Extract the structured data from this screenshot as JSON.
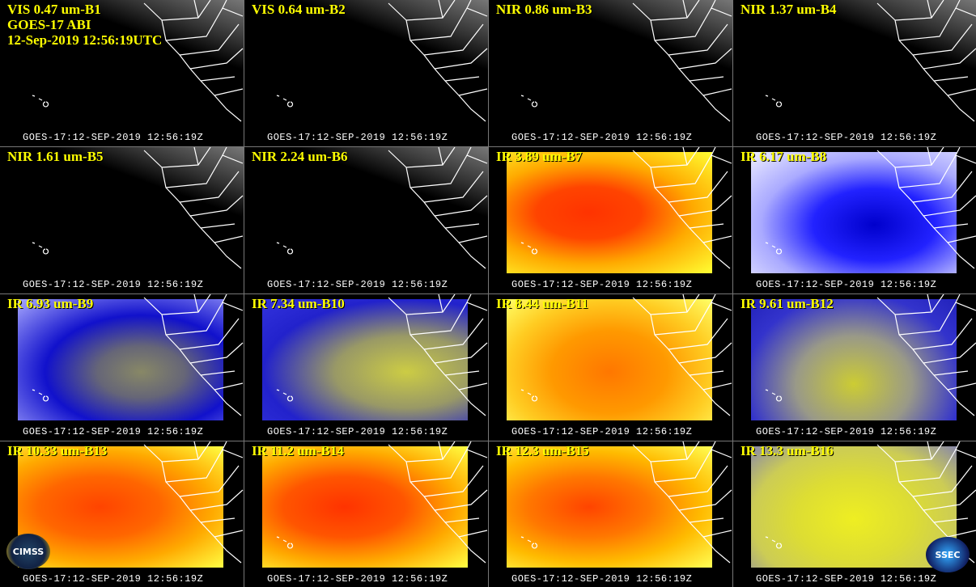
{
  "header": {
    "lines": [
      "GOES-17 ABI",
      "12-Sep-2019 12:56:19UTC"
    ]
  },
  "panels": [
    {
      "label": "VIS 0.47 um-B1",
      "footer": "GOES-17:12-SEP-2019 12:56:19Z"
    },
    {
      "label": "VIS 0.64 um-B2",
      "footer": "GOES-17:12-SEP-2019 12:56:19Z"
    },
    {
      "label": "NIR 0.86 um-B3",
      "footer": "GOES-17:12-SEP-2019 12:56:19Z"
    },
    {
      "label": "NIR 1.37 um-B4",
      "footer": "GOES-17:12-SEP-2019 12:56:19Z"
    },
    {
      "label": "NIR 1.61 um-B5",
      "footer": "GOES-17:12-SEP-2019 12:56:19Z"
    },
    {
      "label": "NIR 2.24 um-B6",
      "footer": "GOES-17:12-SEP-2019 12:56:19Z"
    },
    {
      "label": "IR 3.89 um-B7",
      "footer": "GOES-17:12-SEP-2019 12:56:19Z"
    },
    {
      "label": "IR 6.17 um-B8",
      "footer": "GOES-17:12-SEP-2019 12:56:19Z"
    },
    {
      "label": "IR 6.93 um-B9",
      "footer": "GOES-17:12-SEP-2019 12:56:19Z"
    },
    {
      "label": "IR 7.34 um-B10",
      "footer": "GOES-17:12-SEP-2019 12:56:19Z"
    },
    {
      "label": "IR 8.44 um-B11",
      "footer": "GOES-17:12-SEP-2019 12:56:19Z"
    },
    {
      "label": "IR 9.61 um-B12",
      "footer": "GOES-17:12-SEP-2019 12:56:19Z"
    },
    {
      "label": "IR 10.33 um-B13",
      "footer": "GOES-17:12-SEP-2019 12:56:19Z"
    },
    {
      "label": "IR 11.2 um-B14",
      "footer": "GOES-17:12-SEP-2019 12:56:19Z"
    },
    {
      "label": "IR 12.3 um-B15",
      "footer": "GOES-17:12-SEP-2019 12:56:19Z"
    },
    {
      "label": "IR 13.3 um-B16",
      "footer": "GOES-17:12-SEP-2019 12:56:19Z"
    }
  ],
  "logos": {
    "left": "CIMSS",
    "right": "SSEC"
  }
}
